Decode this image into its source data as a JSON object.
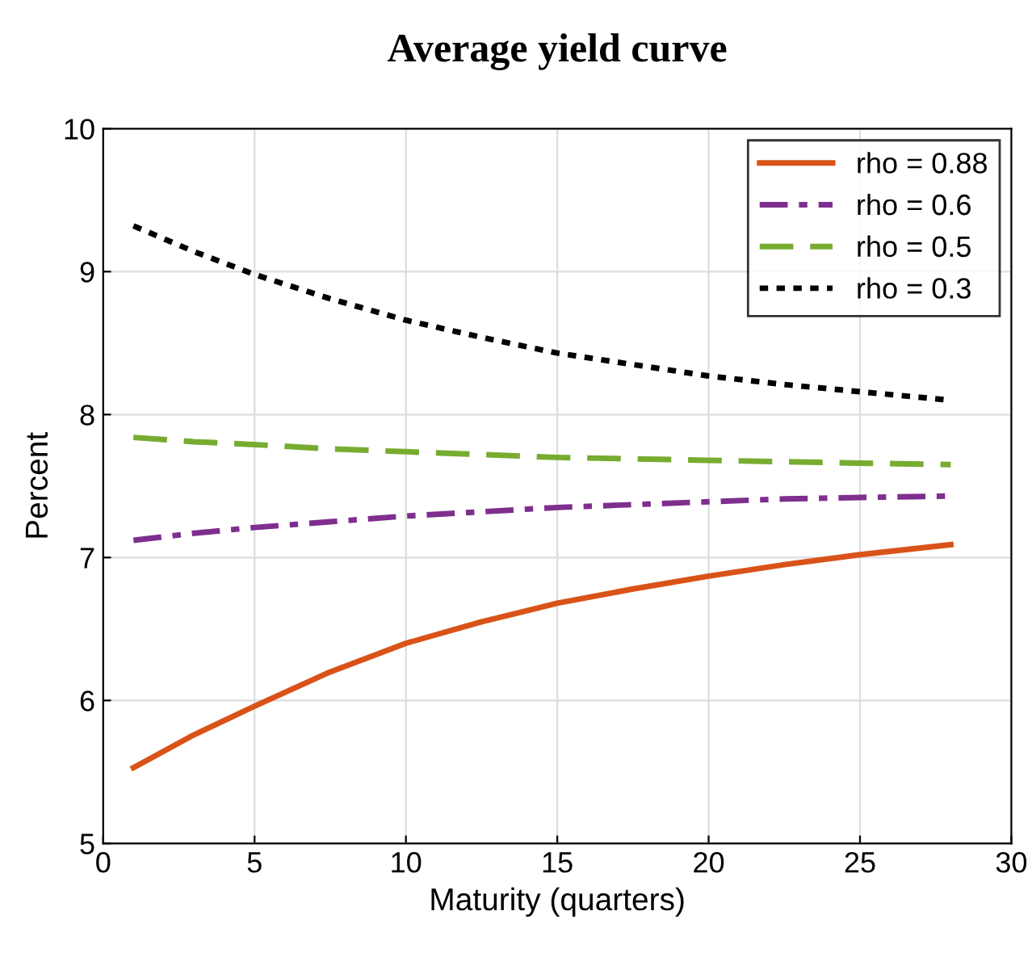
{
  "chart_data": {
    "type": "line",
    "title": "Average yield curve",
    "xlabel": "Maturity (quarters)",
    "ylabel": "Percent",
    "x": [
      1,
      3,
      5,
      7.5,
      10,
      12.5,
      15,
      17.5,
      20,
      22.5,
      25,
      28
    ],
    "series": [
      {
        "name": "rho = 0.88",
        "color": "#d95319",
        "line_style": "solid",
        "values": [
          5.53,
          5.76,
          5.96,
          6.2,
          6.4,
          6.55,
          6.68,
          6.78,
          6.87,
          6.95,
          7.02,
          7.09
        ]
      },
      {
        "name": "rho = 0.6",
        "color": "#7e2f8e",
        "line_style": "dashdot",
        "values": [
          7.12,
          7.17,
          7.21,
          7.25,
          7.29,
          7.32,
          7.35,
          7.37,
          7.39,
          7.41,
          7.42,
          7.43
        ]
      },
      {
        "name": "rho = 0.5",
        "color": "#77ac30",
        "line_style": "dashed",
        "values": [
          7.84,
          7.81,
          7.79,
          7.76,
          7.74,
          7.72,
          7.7,
          7.69,
          7.68,
          7.67,
          7.66,
          7.65
        ]
      },
      {
        "name": "rho = 0.3",
        "color": "#000000",
        "line_style": "dotted",
        "values": [
          9.32,
          9.14,
          8.98,
          8.81,
          8.66,
          8.54,
          8.43,
          8.35,
          8.27,
          8.21,
          8.16,
          8.1
        ]
      }
    ],
    "xlim": [
      0,
      30
    ],
    "xticks": [
      0,
      5,
      10,
      15,
      20,
      25,
      30
    ],
    "ylim": [
      5,
      10
    ],
    "yticks": [
      5,
      6,
      7,
      8,
      9,
      10
    ],
    "grid": true,
    "legend": "top right",
    "marker": "none"
  }
}
